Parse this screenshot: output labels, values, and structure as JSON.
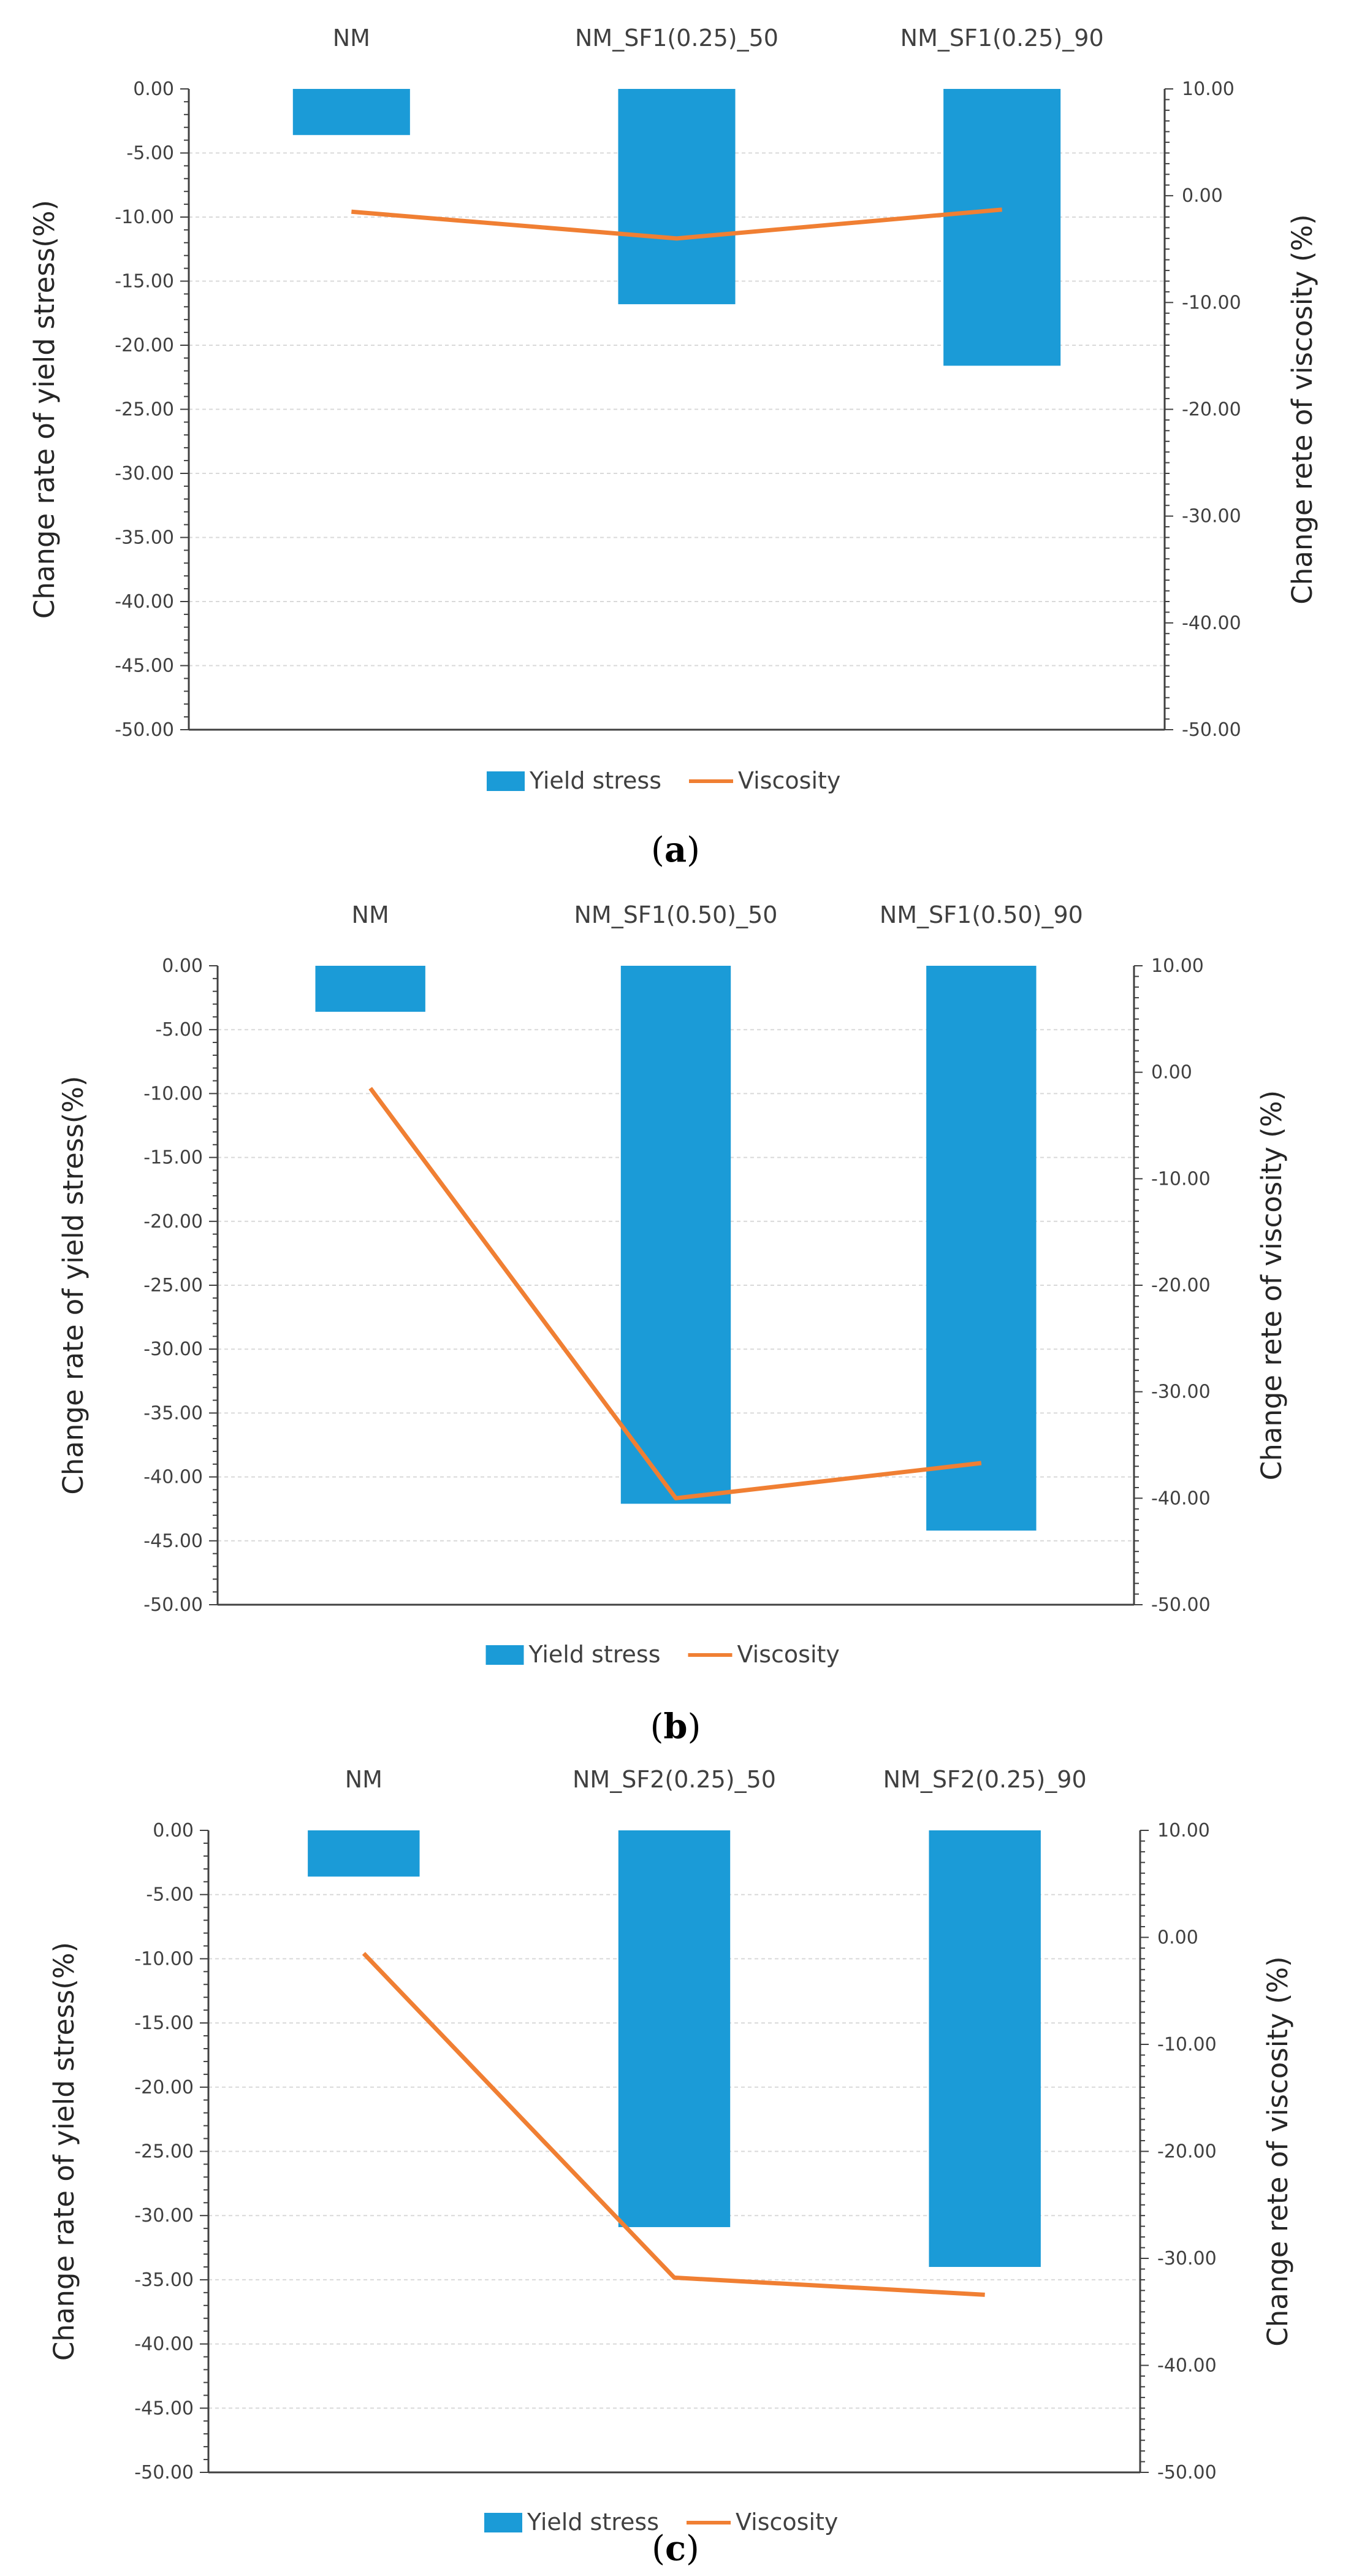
{
  "colors": {
    "bar": "#1B9BD7",
    "line": "#F07F33",
    "grid": "#D9D9D9",
    "axis": "#404040"
  },
  "chart_data": [
    {
      "type": "bar",
      "panel": "a",
      "categories": [
        "NM",
        "NM_SF1(0.25)_50",
        "NM_SF1(0.25)_90"
      ],
      "series": [
        {
          "name": "Yield stress",
          "kind": "bar",
          "axis": "left",
          "values": [
            -3.6,
            -16.8,
            -21.6
          ]
        },
        {
          "name": "Viscosity",
          "kind": "line",
          "axis": "right",
          "values": [
            -1.5,
            -4.0,
            -1.3
          ]
        }
      ],
      "ylabel": "Change rate of yield stress(%)",
      "y2label": "Change rete of viscosity (%)",
      "ylim": [
        -50,
        0
      ],
      "y2lim": [
        -50,
        10
      ],
      "yticks": [
        "0.00",
        "-5.00",
        "-10.00",
        "-15.00",
        "-20.00",
        "-25.00",
        "-30.00",
        "-35.00",
        "-40.00",
        "-45.00",
        "-50.00"
      ],
      "y2ticks": [
        "10.00",
        "0.00",
        "-10.00",
        "-20.00",
        "-30.00",
        "-40.00",
        "-50.00"
      ],
      "legend": [
        "Yield stress",
        "Viscosity"
      ],
      "legend_position": "bottom",
      "grid": true
    },
    {
      "type": "bar",
      "panel": "b",
      "categories": [
        "NM",
        "NM_SF1(0.50)_50",
        "NM_SF1(0.50)_90"
      ],
      "series": [
        {
          "name": "Yield stress",
          "kind": "bar",
          "axis": "left",
          "values": [
            -3.6,
            -42.1,
            -44.2
          ]
        },
        {
          "name": "Viscosity",
          "kind": "line",
          "axis": "right",
          "values": [
            -1.5,
            -40.0,
            -36.7
          ]
        }
      ],
      "ylabel": "Change rate of yield stress(%)",
      "y2label": "Change rete of viscosity (%)",
      "ylim": [
        -50,
        0
      ],
      "y2lim": [
        -50,
        10
      ],
      "yticks": [
        "0.00",
        "-5.00",
        "-10.00",
        "-15.00",
        "-20.00",
        "-25.00",
        "-30.00",
        "-35.00",
        "-40.00",
        "-45.00",
        "-50.00"
      ],
      "y2ticks": [
        "10.00",
        "0.00",
        "-10.00",
        "-20.00",
        "-30.00",
        "-40.00",
        "-50.00"
      ],
      "legend": [
        "Yield stress",
        "Viscosity"
      ],
      "legend_position": "bottom",
      "grid": true
    },
    {
      "type": "bar",
      "panel": "c",
      "categories": [
        "NM",
        "NM_SF2(0.25)_50",
        "NM_SF2(0.25)_90"
      ],
      "series": [
        {
          "name": "Yield stress",
          "kind": "bar",
          "axis": "left",
          "values": [
            -3.6,
            -30.9,
            -34.0
          ]
        },
        {
          "name": "Viscosity",
          "kind": "line",
          "axis": "right",
          "values": [
            -1.5,
            -31.8,
            -33.4
          ]
        }
      ],
      "ylabel": "Change rate of yield stress(%)",
      "y2label": "Change rete of viscosity (%)",
      "ylim": [
        -50,
        0
      ],
      "y2lim": [
        -50,
        10
      ],
      "yticks": [
        "0.00",
        "-5.00",
        "-10.00",
        "-15.00",
        "-20.00",
        "-25.00",
        "-30.00",
        "-35.00",
        "-40.00",
        "-45.00",
        "-50.00"
      ],
      "y2ticks": [
        "10.00",
        "0.00",
        "-10.00",
        "-20.00",
        "-30.00",
        "-40.00",
        "-50.00"
      ],
      "legend": [
        "Yield stress",
        "Viscosity"
      ],
      "legend_position": "bottom",
      "grid": true
    }
  ]
}
